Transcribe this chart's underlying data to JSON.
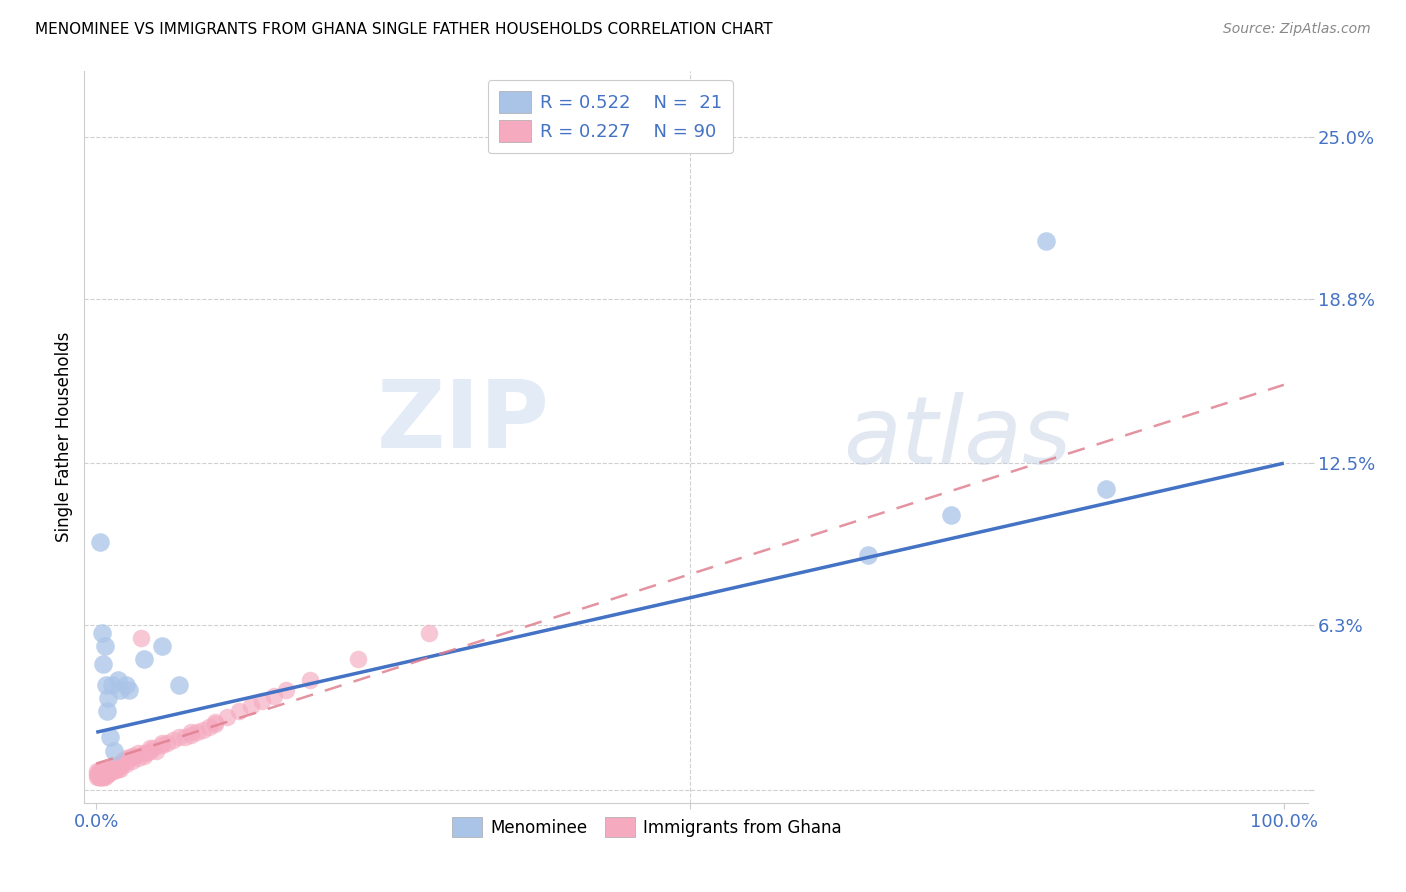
{
  "title": "MENOMINEE VS IMMIGRANTS FROM GHANA SINGLE FATHER HOUSEHOLDS CORRELATION CHART",
  "source": "Source: ZipAtlas.com",
  "ylabel": "Single Father Households",
  "xlim": [
    -0.01,
    1.02
  ],
  "ylim": [
    -0.005,
    0.275
  ],
  "yticks": [
    0.0,
    0.063,
    0.125,
    0.188,
    0.25
  ],
  "ytick_labels": [
    "",
    "6.3%",
    "12.5%",
    "18.8%",
    "25.0%"
  ],
  "xticks": [
    0.0,
    0.5,
    1.0
  ],
  "xtick_labels": [
    "0.0%",
    "",
    "100.0%"
  ],
  "color_menominee": "#aac4e8",
  "color_ghana": "#f5aac0",
  "color_line_menominee": "#4472c4",
  "color_line_ghana": "#e08090",
  "color_ticks": "#4472c4",
  "menominee_line_start_y": 0.022,
  "menominee_line_end_y": 0.125,
  "ghana_line_start_y": 0.01,
  "ghana_line_end_y": 0.155,
  "watermark_zip": "ZIP",
  "watermark_atlas": "atlas",
  "background_color": "#ffffff",
  "menominee_x": [
    0.003,
    0.005,
    0.006,
    0.007,
    0.008,
    0.009,
    0.01,
    0.012,
    0.013,
    0.015,
    0.018,
    0.02,
    0.025,
    0.028,
    0.04,
    0.055,
    0.07,
    0.65,
    0.72,
    0.8,
    0.85
  ],
  "menominee_y": [
    0.095,
    0.06,
    0.048,
    0.055,
    0.04,
    0.03,
    0.035,
    0.02,
    0.04,
    0.015,
    0.042,
    0.038,
    0.04,
    0.038,
    0.05,
    0.055,
    0.04,
    0.09,
    0.105,
    0.21,
    0.115
  ],
  "ghana_x": [
    0.001,
    0.001,
    0.001,
    0.002,
    0.002,
    0.002,
    0.002,
    0.003,
    0.003,
    0.003,
    0.004,
    0.004,
    0.004,
    0.005,
    0.005,
    0.005,
    0.005,
    0.005,
    0.006,
    0.006,
    0.006,
    0.007,
    0.007,
    0.007,
    0.008,
    0.008,
    0.009,
    0.009,
    0.01,
    0.01,
    0.01,
    0.01,
    0.012,
    0.012,
    0.013,
    0.013,
    0.014,
    0.015,
    0.015,
    0.015,
    0.016,
    0.016,
    0.017,
    0.018,
    0.018,
    0.019,
    0.02,
    0.02,
    0.02,
    0.022,
    0.022,
    0.025,
    0.025,
    0.025,
    0.028,
    0.03,
    0.03,
    0.032,
    0.035,
    0.035,
    0.038,
    0.04,
    0.04,
    0.042,
    0.045,
    0.045,
    0.048,
    0.05,
    0.055,
    0.055,
    0.06,
    0.065,
    0.07,
    0.075,
    0.08,
    0.08,
    0.085,
    0.09,
    0.095,
    0.1,
    0.1,
    0.11,
    0.12,
    0.13,
    0.14,
    0.15,
    0.16,
    0.18,
    0.22,
    0.28
  ],
  "ghana_y": [
    0.005,
    0.006,
    0.007,
    0.005,
    0.005,
    0.006,
    0.007,
    0.005,
    0.005,
    0.006,
    0.005,
    0.006,
    0.007,
    0.005,
    0.005,
    0.006,
    0.007,
    0.008,
    0.005,
    0.006,
    0.007,
    0.005,
    0.006,
    0.007,
    0.006,
    0.007,
    0.006,
    0.007,
    0.006,
    0.006,
    0.007,
    0.008,
    0.007,
    0.008,
    0.007,
    0.008,
    0.008,
    0.007,
    0.008,
    0.009,
    0.008,
    0.009,
    0.009,
    0.008,
    0.009,
    0.009,
    0.008,
    0.009,
    0.01,
    0.01,
    0.011,
    0.01,
    0.011,
    0.012,
    0.012,
    0.011,
    0.013,
    0.013,
    0.012,
    0.014,
    0.058,
    0.013,
    0.014,
    0.014,
    0.015,
    0.016,
    0.016,
    0.015,
    0.017,
    0.018,
    0.018,
    0.019,
    0.02,
    0.02,
    0.021,
    0.022,
    0.022,
    0.023,
    0.024,
    0.025,
    0.026,
    0.028,
    0.03,
    0.032,
    0.034,
    0.036,
    0.038,
    0.042,
    0.05,
    0.06
  ]
}
